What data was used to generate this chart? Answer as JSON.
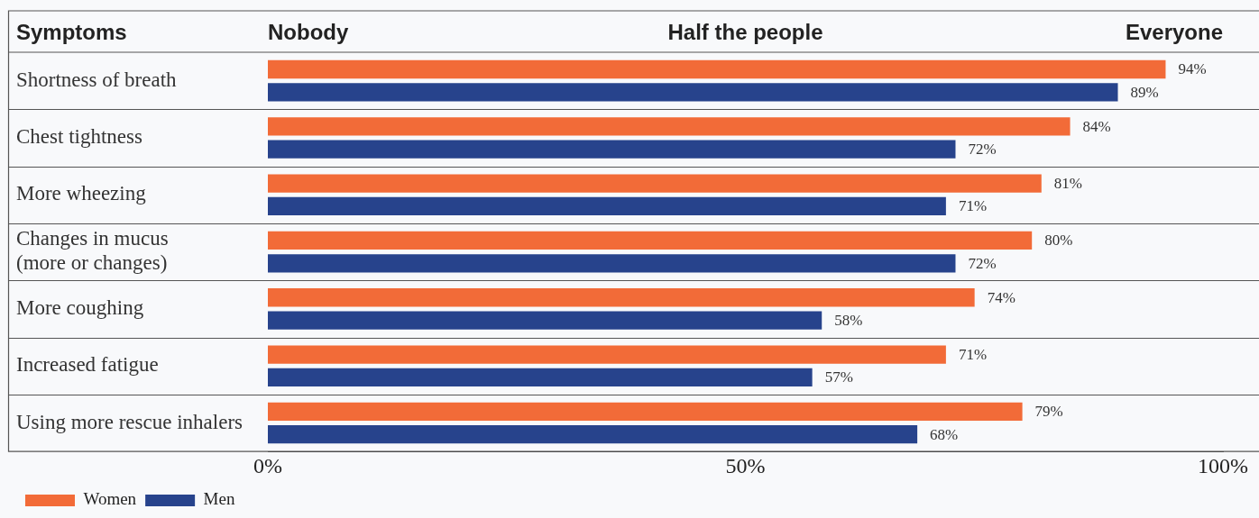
{
  "chart_data": {
    "type": "bar",
    "orientation": "horizontal",
    "ylabel": "Symptoms",
    "categories": [
      "Shortness of breath",
      "Chest tightness",
      "More wheezing",
      "Changes in mucus (more or changes)",
      "More coughing",
      "Increased fatigue",
      "Using more rescue inhalers"
    ],
    "series": [
      {
        "name": "Women",
        "color": "#f26b38",
        "values": [
          94,
          84,
          81,
          80,
          74,
          71,
          79
        ],
        "value_labels": [
          "94%",
          "84%",
          "81%",
          "80%",
          "74%",
          "71%",
          "79%"
        ]
      },
      {
        "name": "Men",
        "color": "#27438c",
        "values": [
          89,
          72,
          71,
          72,
          58,
          57,
          68
        ],
        "value_labels": [
          "89%",
          "72%",
          "71%",
          "72%",
          "58%",
          "57%",
          "68%"
        ]
      }
    ],
    "xlim": [
      0,
      100
    ],
    "xticks": [
      {
        "value": 0,
        "label": "0%"
      },
      {
        "value": 50,
        "label": "50%"
      },
      {
        "value": 100,
        "label": "100%"
      }
    ],
    "annotations": [
      "Nobody",
      "Half the people",
      "Everyone"
    ],
    "grid": "y",
    "legend": "bottom left"
  }
}
